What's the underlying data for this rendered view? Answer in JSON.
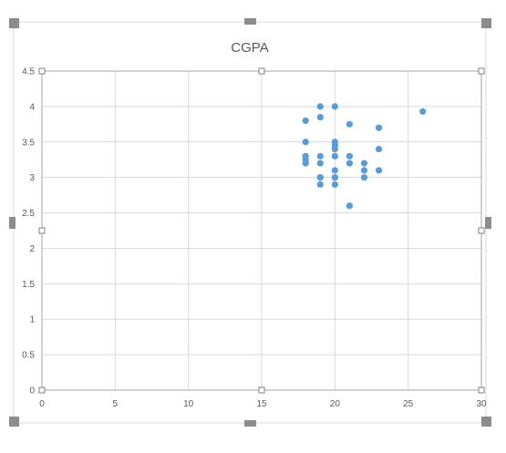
{
  "chart_data": {
    "type": "scatter",
    "title": "CGPA",
    "xlabel": "",
    "ylabel": "",
    "xlim": [
      0,
      30
    ],
    "ylim": [
      0,
      4.5
    ],
    "x_ticks": [
      "0",
      "5",
      "10",
      "15",
      "20",
      "25",
      "30"
    ],
    "y_ticks": [
      "0",
      "0.5",
      "1",
      "1.5",
      "2",
      "2.5",
      "3",
      "3.5",
      "4",
      "4.5"
    ],
    "grid": true,
    "legend": "none",
    "series": [
      {
        "points": [
          [
            18,
            3.8
          ],
          [
            18,
            3.5
          ],
          [
            18,
            3.3
          ],
          [
            18,
            3.25
          ],
          [
            18,
            3.2
          ],
          [
            19,
            4.0
          ],
          [
            19,
            3.85
          ],
          [
            19,
            3.3
          ],
          [
            19,
            3.2
          ],
          [
            19,
            3.0
          ],
          [
            19,
            3.0
          ],
          [
            19,
            2.9
          ],
          [
            20,
            4.0
          ],
          [
            20,
            3.5
          ],
          [
            20,
            3.45
          ],
          [
            20,
            3.4
          ],
          [
            20,
            3.3
          ],
          [
            20,
            3.1
          ],
          [
            20,
            3.0
          ],
          [
            20,
            3.0
          ],
          [
            20,
            2.9
          ],
          [
            21,
            3.75
          ],
          [
            21,
            3.3
          ],
          [
            21,
            3.2
          ],
          [
            21,
            2.6
          ],
          [
            22,
            3.2
          ],
          [
            22,
            3.1
          ],
          [
            22,
            3.0
          ],
          [
            23,
            3.7
          ],
          [
            23,
            3.4
          ],
          [
            23,
            3.1
          ],
          [
            26,
            3.93
          ]
        ]
      }
    ],
    "colors": {
      "marker": "#5b9bd5",
      "grid": "#d9d9d9",
      "axis": "#bfbfbf",
      "text": "#595959",
      "title": "#595959",
      "handle": "#8c8c8c"
    }
  }
}
